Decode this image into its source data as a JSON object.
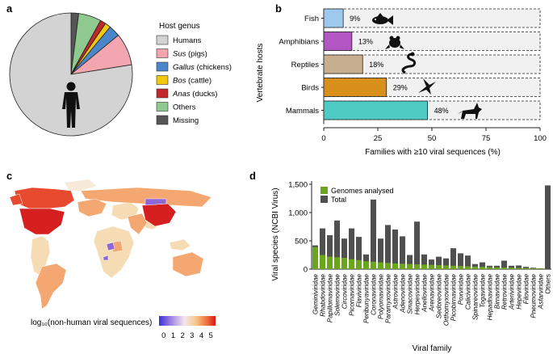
{
  "panels": {
    "a": "a",
    "b": "b",
    "c": "c",
    "d": "d"
  },
  "pie": {
    "legend_title": "Host genus",
    "slices": [
      {
        "label": "Humans",
        "genus": "Humans",
        "common": "",
        "value": 77.5,
        "color": "#d3d3d3"
      },
      {
        "label": "Sus (pigs)",
        "genus": "Sus",
        "common": " (pigs)",
        "value": 8.5,
        "color": "#f4a6b0"
      },
      {
        "label": "Gallus (chickens)",
        "genus": "Gallus",
        "common": " (chickens)",
        "value": 3.0,
        "color": "#4a86c8"
      },
      {
        "label": "Bos (cattle)",
        "genus": "Bos",
        "common": " (cattle)",
        "value": 1.5,
        "color": "#f2c80f"
      },
      {
        "label": "Anas (ducks)",
        "genus": "Anas",
        "common": " (ducks)",
        "value": 1.5,
        "color": "#c0282b"
      },
      {
        "label": "Others",
        "genus": "Others",
        "common": "",
        "value": 6.0,
        "color": "#8fc98f"
      },
      {
        "label": "Missing",
        "genus": "Missing",
        "common": "",
        "value": 2.0,
        "color": "#555555"
      }
    ]
  },
  "chart_data": [
    {
      "type": "pie",
      "title": "Host genus",
      "labels": [
        "Humans",
        "Sus (pigs)",
        "Gallus (chickens)",
        "Bos (cattle)",
        "Anas (ducks)",
        "Others",
        "Missing"
      ],
      "values": [
        77.5,
        8.5,
        3.0,
        1.5,
        1.5,
        6.0,
        2.0
      ]
    },
    {
      "type": "bar",
      "orientation": "horizontal",
      "categories": [
        "Fish",
        "Amphibians",
        "Reptiles",
        "Birds",
        "Mammals"
      ],
      "values": [
        9,
        13,
        18,
        29,
        48
      ],
      "value_labels": [
        "9%",
        "13%",
        "18%",
        "29%",
        "48%"
      ],
      "colors": [
        "#9ec9ee",
        "#b455c4",
        "#c7ae8e",
        "#d9901a",
        "#4ecbc3"
      ],
      "xlabel": "Families with ≥10 viral sequences (%)",
      "ylabel": "Vertebrate hosts",
      "xlim": [
        0,
        100
      ],
      "xticks": [
        0,
        25,
        50,
        75,
        100
      ]
    },
    {
      "type": "heatmap",
      "subtype": "choropleth world map",
      "colorbar_label": "log₁₀(non-human viral sequences)",
      "colorbar_ticks": [
        "0",
        "1",
        "2",
        "3",
        "4",
        "5"
      ],
      "range": [
        0,
        5
      ],
      "highlighted_regions": [
        {
          "name": "United States",
          "value": 5
        },
        {
          "name": "China",
          "value": 5
        },
        {
          "name": "Canada",
          "value": 4.1
        },
        {
          "name": "Russia",
          "value": 3.7
        },
        {
          "name": "Brazil",
          "value": 3.6
        },
        {
          "name": "Australia",
          "value": 3.5
        },
        {
          "name": "Europe",
          "value": 3.8
        },
        {
          "name": "India",
          "value": 3.4
        },
        {
          "name": "Mongolia",
          "value": 1.0
        },
        {
          "name": "Central African states",
          "value": 0.6
        }
      ]
    },
    {
      "type": "bar",
      "ylabel": "Viral species (NCBI Virus)",
      "xlabel": "Viral family",
      "ylim": [
        0,
        1500
      ],
      "yticks": [
        "0",
        "500",
        "1,000",
        "1,500"
      ],
      "yticks_values": [
        0,
        500,
        1000,
        1500
      ],
      "categories": [
        "Geminiviridae",
        "Rhabdoviridae",
        "Papillomaviridae",
        "Solemoviridae",
        "Circoviridae",
        "Picornaviridae",
        "Flaviviridae",
        "Peribunyaviridae",
        "Coronaviridae",
        "Polyomaviridae",
        "Paramyxoviridae",
        "Astroviridae",
        "Adenoviridae",
        "Smacoviridae",
        "Herpesviridae",
        "Anelloviridae",
        "Arenaviridae",
        "Sedoreoviridae",
        "Orthomyxoviridae",
        "Picobirnaviridae",
        "Poxviridae",
        "Caliciviridae",
        "Spinareoviridae",
        "Togaviridae",
        "Hepadnaviridae",
        "Birnaviridae",
        "Retroviridae",
        "Arteriviridae",
        "Hepeviridae",
        "Filoviridae",
        "Pneumoviridae",
        "Asfarviridae",
        "Others"
      ],
      "series": [
        {
          "name": "Total",
          "color": "#505050",
          "values": [
            420,
            720,
            600,
            860,
            540,
            720,
            570,
            260,
            1230,
            540,
            780,
            700,
            580,
            250,
            840,
            260,
            170,
            220,
            190,
            370,
            280,
            240,
            90,
            120,
            60,
            60,
            150,
            60,
            65,
            40,
            25,
            15,
            1480
          ]
        },
        {
          "name": "Genomes analysed",
          "color": "#6aa61c",
          "values": [
            390,
            250,
            220,
            210,
            200,
            175,
            160,
            140,
            130,
            120,
            110,
            100,
            95,
            90,
            85,
            80,
            75,
            70,
            65,
            60,
            55,
            50,
            45,
            40,
            35,
            30,
            28,
            25,
            22,
            18,
            15,
            10,
            0
          ]
        }
      ],
      "legend": [
        "Genomes analysed",
        "Total"
      ]
    }
  ]
}
